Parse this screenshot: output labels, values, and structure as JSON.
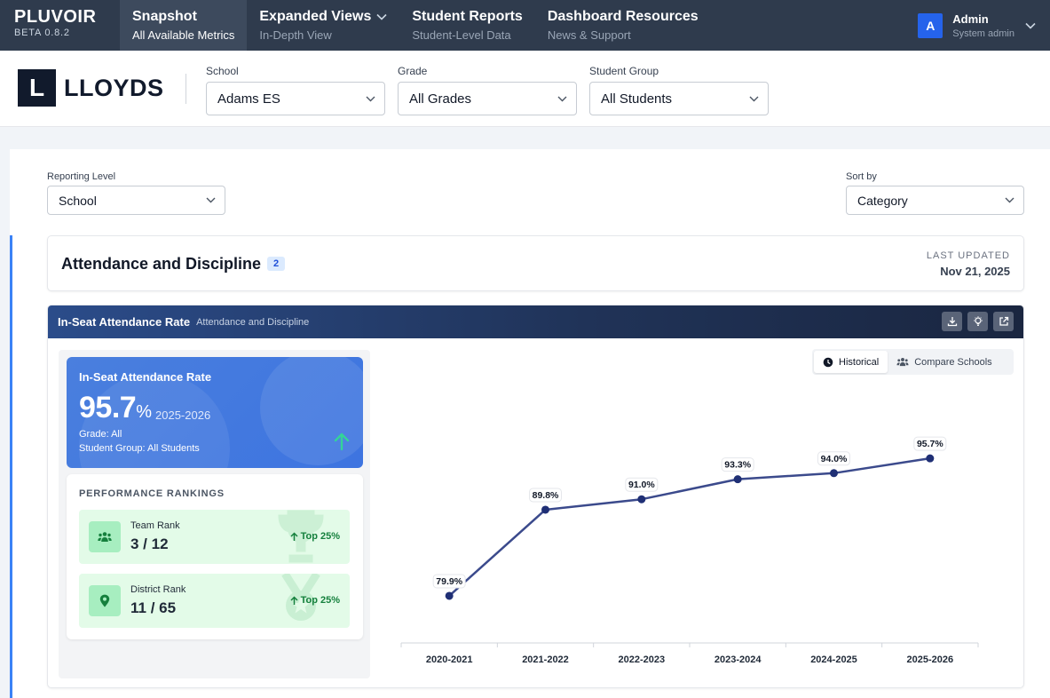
{
  "nav": {
    "brand": "PLUVOIR",
    "version": "BETA 0.8.2",
    "items": [
      {
        "title": "Snapshot",
        "subtitle": "All Available Metrics"
      },
      {
        "title": "Expanded Views",
        "subtitle": "In-Depth View"
      },
      {
        "title": "Student Reports",
        "subtitle": "Student-Level Data"
      },
      {
        "title": "Dashboard Resources",
        "subtitle": "News & Support"
      }
    ],
    "user": {
      "initial": "A",
      "name": "Admin",
      "role": "System admin"
    }
  },
  "logo": {
    "letter": "L",
    "word": "LLOYDS"
  },
  "filters": {
    "school": {
      "label": "School",
      "value": "Adams ES"
    },
    "grade": {
      "label": "Grade",
      "value": "All Grades"
    },
    "group": {
      "label": "Student Group",
      "value": "All Students"
    }
  },
  "controls": {
    "reporting_level": {
      "label": "Reporting Level",
      "value": "School"
    },
    "sort_by": {
      "label": "Sort by",
      "value": "Category"
    }
  },
  "category": {
    "title": "Attendance and Discipline",
    "count": "2",
    "last_updated_label": "LAST UPDATED",
    "last_updated": "Nov 21, 2025"
  },
  "metric": {
    "title": "In-Seat Attendance Rate",
    "category": "Attendance and Discipline",
    "card": {
      "title": "In-Seat Attendance Rate",
      "value": "95.7",
      "unit": "%",
      "year": "2025-2026",
      "grade": "Grade: All",
      "group": "Student Group: All Students"
    },
    "rankings": {
      "header": "PERFORMANCE RANKINGS",
      "team": {
        "label": "Team Rank",
        "value": "3 / 12",
        "badge": "Top 25%"
      },
      "district": {
        "label": "District Rank",
        "value": "11 / 65",
        "badge": "Top 25%"
      }
    },
    "toggle": {
      "historical": "Historical",
      "compare": "Compare Schools"
    }
  },
  "colors": {
    "accent": "#3b82f6",
    "line": "#3b4a8c",
    "point": "#1f2f75"
  },
  "chart_data": {
    "type": "line",
    "categories": [
      "2020-2021",
      "2021-2022",
      "2022-2023",
      "2023-2024",
      "2024-2025",
      "2025-2026"
    ],
    "values": [
      79.9,
      89.8,
      91.0,
      93.3,
      94.0,
      95.7
    ],
    "labels": [
      "79.9%",
      "89.8%",
      "91.0%",
      "93.3%",
      "94.0%",
      "95.7%"
    ],
    "ylim": [
      70,
      100
    ],
    "grid": false
  }
}
